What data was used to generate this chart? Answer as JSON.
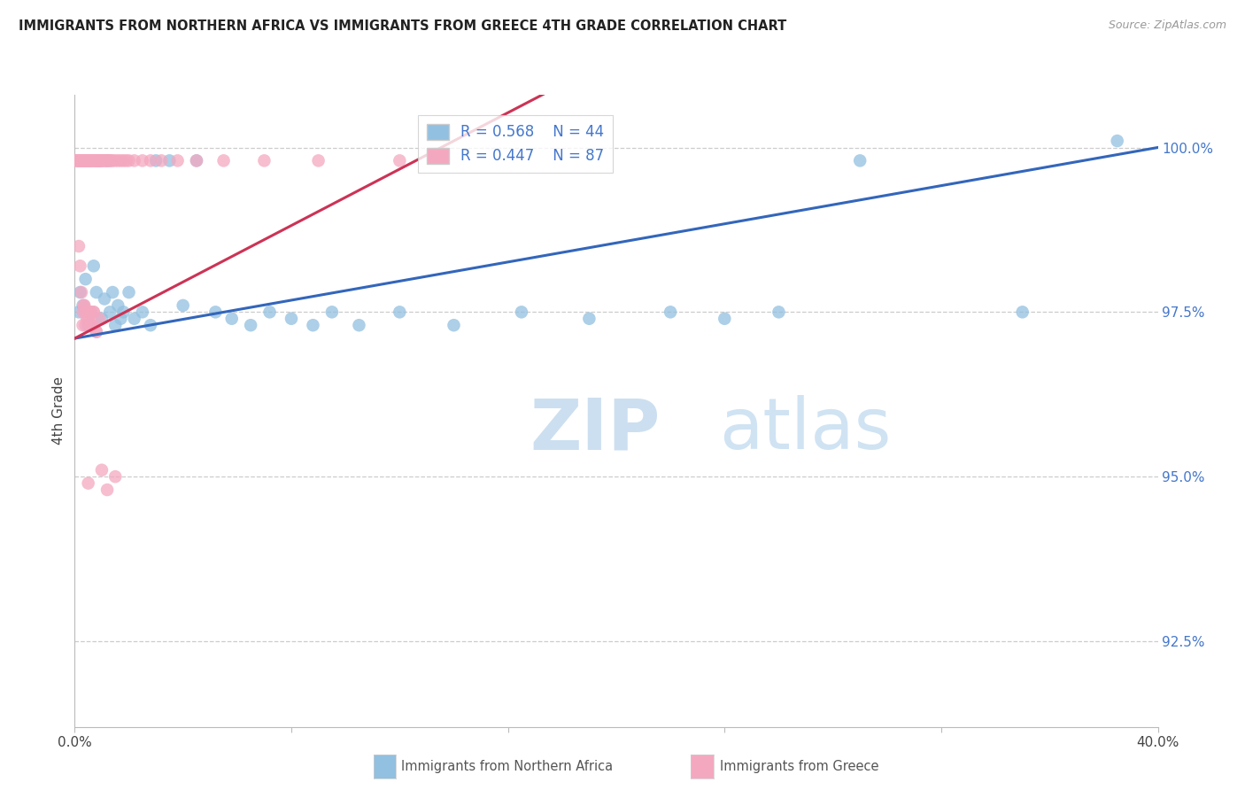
{
  "title": "IMMIGRANTS FROM NORTHERN AFRICA VS IMMIGRANTS FROM GREECE 4TH GRADE CORRELATION CHART",
  "source": "Source: ZipAtlas.com",
  "ylabel": "4th Grade",
  "ytick_values": [
    92.5,
    95.0,
    97.5,
    100.0
  ],
  "ytick_labels": [
    "92.5%",
    "95.0%",
    "97.5%",
    "100.0%"
  ],
  "xlim": [
    0.0,
    40.0
  ],
  "ylim": [
    91.2,
    100.8
  ],
  "legend_blue_r": "0.568",
  "legend_blue_n": "44",
  "legend_pink_r": "0.447",
  "legend_pink_n": "87",
  "blue_color": "#92c0e0",
  "pink_color": "#f4a8c0",
  "blue_line_color": "#3366bb",
  "pink_line_color": "#cc3355",
  "blue_line": [
    [
      0.0,
      97.1
    ],
    [
      40.0,
      100.0
    ]
  ],
  "pink_line": [
    [
      0.0,
      97.1
    ],
    [
      14.0,
      100.1
    ]
  ],
  "blue_x": [
    0.15,
    0.2,
    0.3,
    0.4,
    0.5,
    0.6,
    0.7,
    0.8,
    0.9,
    1.0,
    1.1,
    1.2,
    1.3,
    1.4,
    1.5,
    1.6,
    1.7,
    1.8,
    2.0,
    2.2,
    2.5,
    2.8,
    3.0,
    3.5,
    4.0,
    4.5,
    5.2,
    5.8,
    6.5,
    7.2,
    8.0,
    8.8,
    9.5,
    10.5,
    12.0,
    14.0,
    16.5,
    19.0,
    22.0,
    24.0,
    26.0,
    29.0,
    35.0,
    38.5
  ],
  "blue_y": [
    97.5,
    97.8,
    97.6,
    98.0,
    97.3,
    97.5,
    98.2,
    97.8,
    99.8,
    97.4,
    97.7,
    99.8,
    97.5,
    97.8,
    97.3,
    97.6,
    97.4,
    97.5,
    97.8,
    97.4,
    97.5,
    97.3,
    99.8,
    99.8,
    97.6,
    99.8,
    97.5,
    97.4,
    97.3,
    97.5,
    97.4,
    97.3,
    97.5,
    97.3,
    97.5,
    97.3,
    97.5,
    97.4,
    97.5,
    97.4,
    97.5,
    99.8,
    97.5,
    100.1
  ],
  "pink_x": [
    0.05,
    0.08,
    0.1,
    0.12,
    0.15,
    0.18,
    0.2,
    0.22,
    0.25,
    0.28,
    0.3,
    0.32,
    0.35,
    0.38,
    0.4,
    0.42,
    0.45,
    0.48,
    0.5,
    0.52,
    0.55,
    0.58,
    0.6,
    0.62,
    0.65,
    0.7,
    0.72,
    0.75,
    0.78,
    0.8,
    0.82,
    0.85,
    0.88,
    0.9,
    0.92,
    0.95,
    0.98,
    1.0,
    1.05,
    1.1,
    1.15,
    1.2,
    1.25,
    1.3,
    1.35,
    1.4,
    1.5,
    1.6,
    1.7,
    1.8,
    1.9,
    2.0,
    2.2,
    2.5,
    2.8,
    3.2,
    3.8,
    4.5,
    5.5,
    7.0,
    9.0,
    12.0,
    0.15,
    0.2,
    0.25,
    0.3,
    0.35,
    0.4,
    0.5,
    0.6,
    0.7,
    0.8,
    0.3,
    0.4,
    0.5,
    0.6,
    0.7,
    0.8,
    0.35,
    0.45,
    0.55,
    0.65,
    0.9,
    0.5,
    1.0,
    1.5,
    1.2
  ],
  "pink_y": [
    99.8,
    99.8,
    99.8,
    99.8,
    99.8,
    99.8,
    99.8,
    99.8,
    99.8,
    99.8,
    99.8,
    99.8,
    99.8,
    99.8,
    99.8,
    99.8,
    99.8,
    99.8,
    99.8,
    99.8,
    99.8,
    99.8,
    99.8,
    99.8,
    99.8,
    99.8,
    99.8,
    99.8,
    99.8,
    99.8,
    99.8,
    99.8,
    99.8,
    99.8,
    99.8,
    99.8,
    99.8,
    99.8,
    99.8,
    99.8,
    99.8,
    99.8,
    99.8,
    99.8,
    99.8,
    99.8,
    99.8,
    99.8,
    99.8,
    99.8,
    99.8,
    99.8,
    99.8,
    99.8,
    99.8,
    99.8,
    99.8,
    99.8,
    99.8,
    99.8,
    99.8,
    99.8,
    98.5,
    98.2,
    97.8,
    97.5,
    97.6,
    97.3,
    97.5,
    97.3,
    97.5,
    97.2,
    97.3,
    97.5,
    97.4,
    97.3,
    97.5,
    97.2,
    97.6,
    97.4,
    97.5,
    97.3,
    97.4,
    94.9,
    95.1,
    95.0,
    94.8
  ]
}
